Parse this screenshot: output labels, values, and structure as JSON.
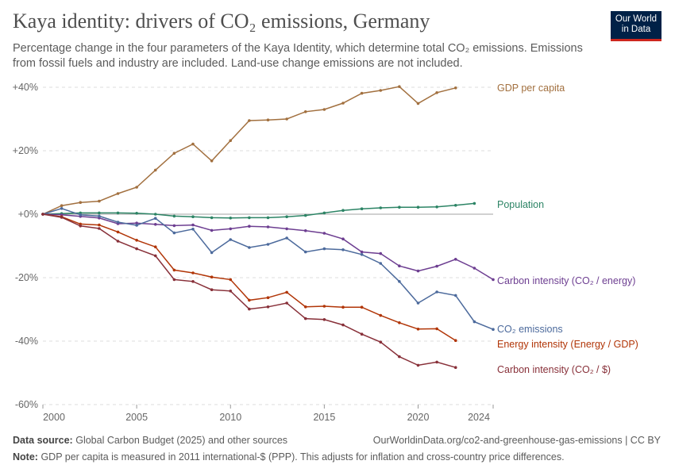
{
  "title": "Kaya identity: drivers of CO₂ emissions, Germany",
  "subtitle": "Percentage change in the four parameters of the Kaya Identity, which determine total CO₂ emissions. Emissions from fossil fuels and industry are included. Land-use change emissions are not included.",
  "logo": {
    "line1": "Our World",
    "line2": "in Data"
  },
  "footer": {
    "source_label": "Data source:",
    "source": "Global Carbon Budget (2025) and other sources",
    "url": "OurWorldinData.org/co2-and-greenhouse-gas-emissions | CC BY",
    "note_label": "Note:",
    "note": "GDP per capita is measured in 2011 international-$ (PPP). This adjusts for inflation and cross-country price differences."
  },
  "chart_data": {
    "type": "line",
    "xlim": [
      2000,
      2024
    ],
    "ylim": [
      -60,
      40
    ],
    "x_ticks": [
      2000,
      2005,
      2010,
      2015,
      2020,
      2024
    ],
    "y_ticks": [
      {
        "v": 40,
        "label": "+40%"
      },
      {
        "v": 20,
        "label": "+20%"
      },
      {
        "v": 0,
        "label": "+0%"
      },
      {
        "v": -20,
        "label": "-20%"
      },
      {
        "v": -40,
        "label": "-40%"
      },
      {
        "v": -60,
        "label": "-60%"
      }
    ],
    "grid": true,
    "legend": "right-end labels",
    "series": [
      {
        "name": "GDP per capita",
        "color": "#a2703f",
        "start": 2000,
        "values": [
          0,
          2.7,
          3.7,
          4.1,
          6.5,
          8.5,
          13.9,
          19.2,
          22.1,
          16.8,
          23.2,
          29.5,
          29.7,
          30.0,
          32.3,
          33.0,
          35.0,
          38.1,
          39.0,
          40.2,
          34.9,
          38.3,
          39.8
        ]
      },
      {
        "name": "Population",
        "color": "#2c8465",
        "start": 2000,
        "values": [
          0,
          0.2,
          0.4,
          0.4,
          0.4,
          0.3,
          0,
          -0.6,
          -0.8,
          -1.1,
          -1.2,
          -1.1,
          -1.1,
          -0.8,
          -0.4,
          0.4,
          1.2,
          1.7,
          2.0,
          2.2,
          2.2,
          2.3,
          2.8,
          3.4
        ]
      },
      {
        "name": "Carbon intensity (CO₂ / energy)",
        "color": "#6d3e91",
        "start": 2000,
        "values": [
          0,
          -0.2,
          -0.7,
          -1.2,
          -3.0,
          -2.8,
          -3.2,
          -3.6,
          -3.4,
          -5.1,
          -4.6,
          -3.8,
          -4.0,
          -4.6,
          -5.2,
          -6.0,
          -7.8,
          -11.9,
          -12.4,
          -16.3,
          -17.9,
          -16.4,
          -14.2,
          -17.0,
          -20.6
        ]
      },
      {
        "name": "CO₂ emissions",
        "color": "#4c6a9c",
        "start": 2000,
        "values": [
          0,
          1.8,
          -0.2,
          -0.6,
          -2.5,
          -3.5,
          -1.3,
          -5.9,
          -4.7,
          -12.1,
          -8.0,
          -10.5,
          -9.5,
          -7.5,
          -11.9,
          -10.9,
          -11.2,
          -12.7,
          -15.5,
          -21.2,
          -28.0,
          -24.5,
          -25.6,
          -33.9,
          -36.3
        ]
      },
      {
        "name": "Energy intensity (Energy / GDP)",
        "color": "#b13507",
        "start": 2000,
        "values": [
          0,
          -0.8,
          -3.1,
          -3.4,
          -5.6,
          -8.2,
          -10.3,
          -17.6,
          -18.5,
          -19.8,
          -20.6,
          -27.1,
          -26.3,
          -24.6,
          -29.2,
          -29.0,
          -29.3,
          -29.3,
          -31.9,
          -34.2,
          -36.2,
          -36.1,
          -39.8
        ]
      },
      {
        "name": "Carbon intensity (CO₂ / $)",
        "color": "#883039",
        "start": 2000,
        "values": [
          0,
          -1.0,
          -3.7,
          -4.5,
          -8.5,
          -10.9,
          -13.1,
          -20.6,
          -21.2,
          -23.8,
          -24.2,
          -29.9,
          -29.2,
          -28.0,
          -32.9,
          -33.2,
          -34.9,
          -37.8,
          -40.3,
          -44.9,
          -47.6,
          -46.6,
          -48.3
        ]
      }
    ]
  }
}
